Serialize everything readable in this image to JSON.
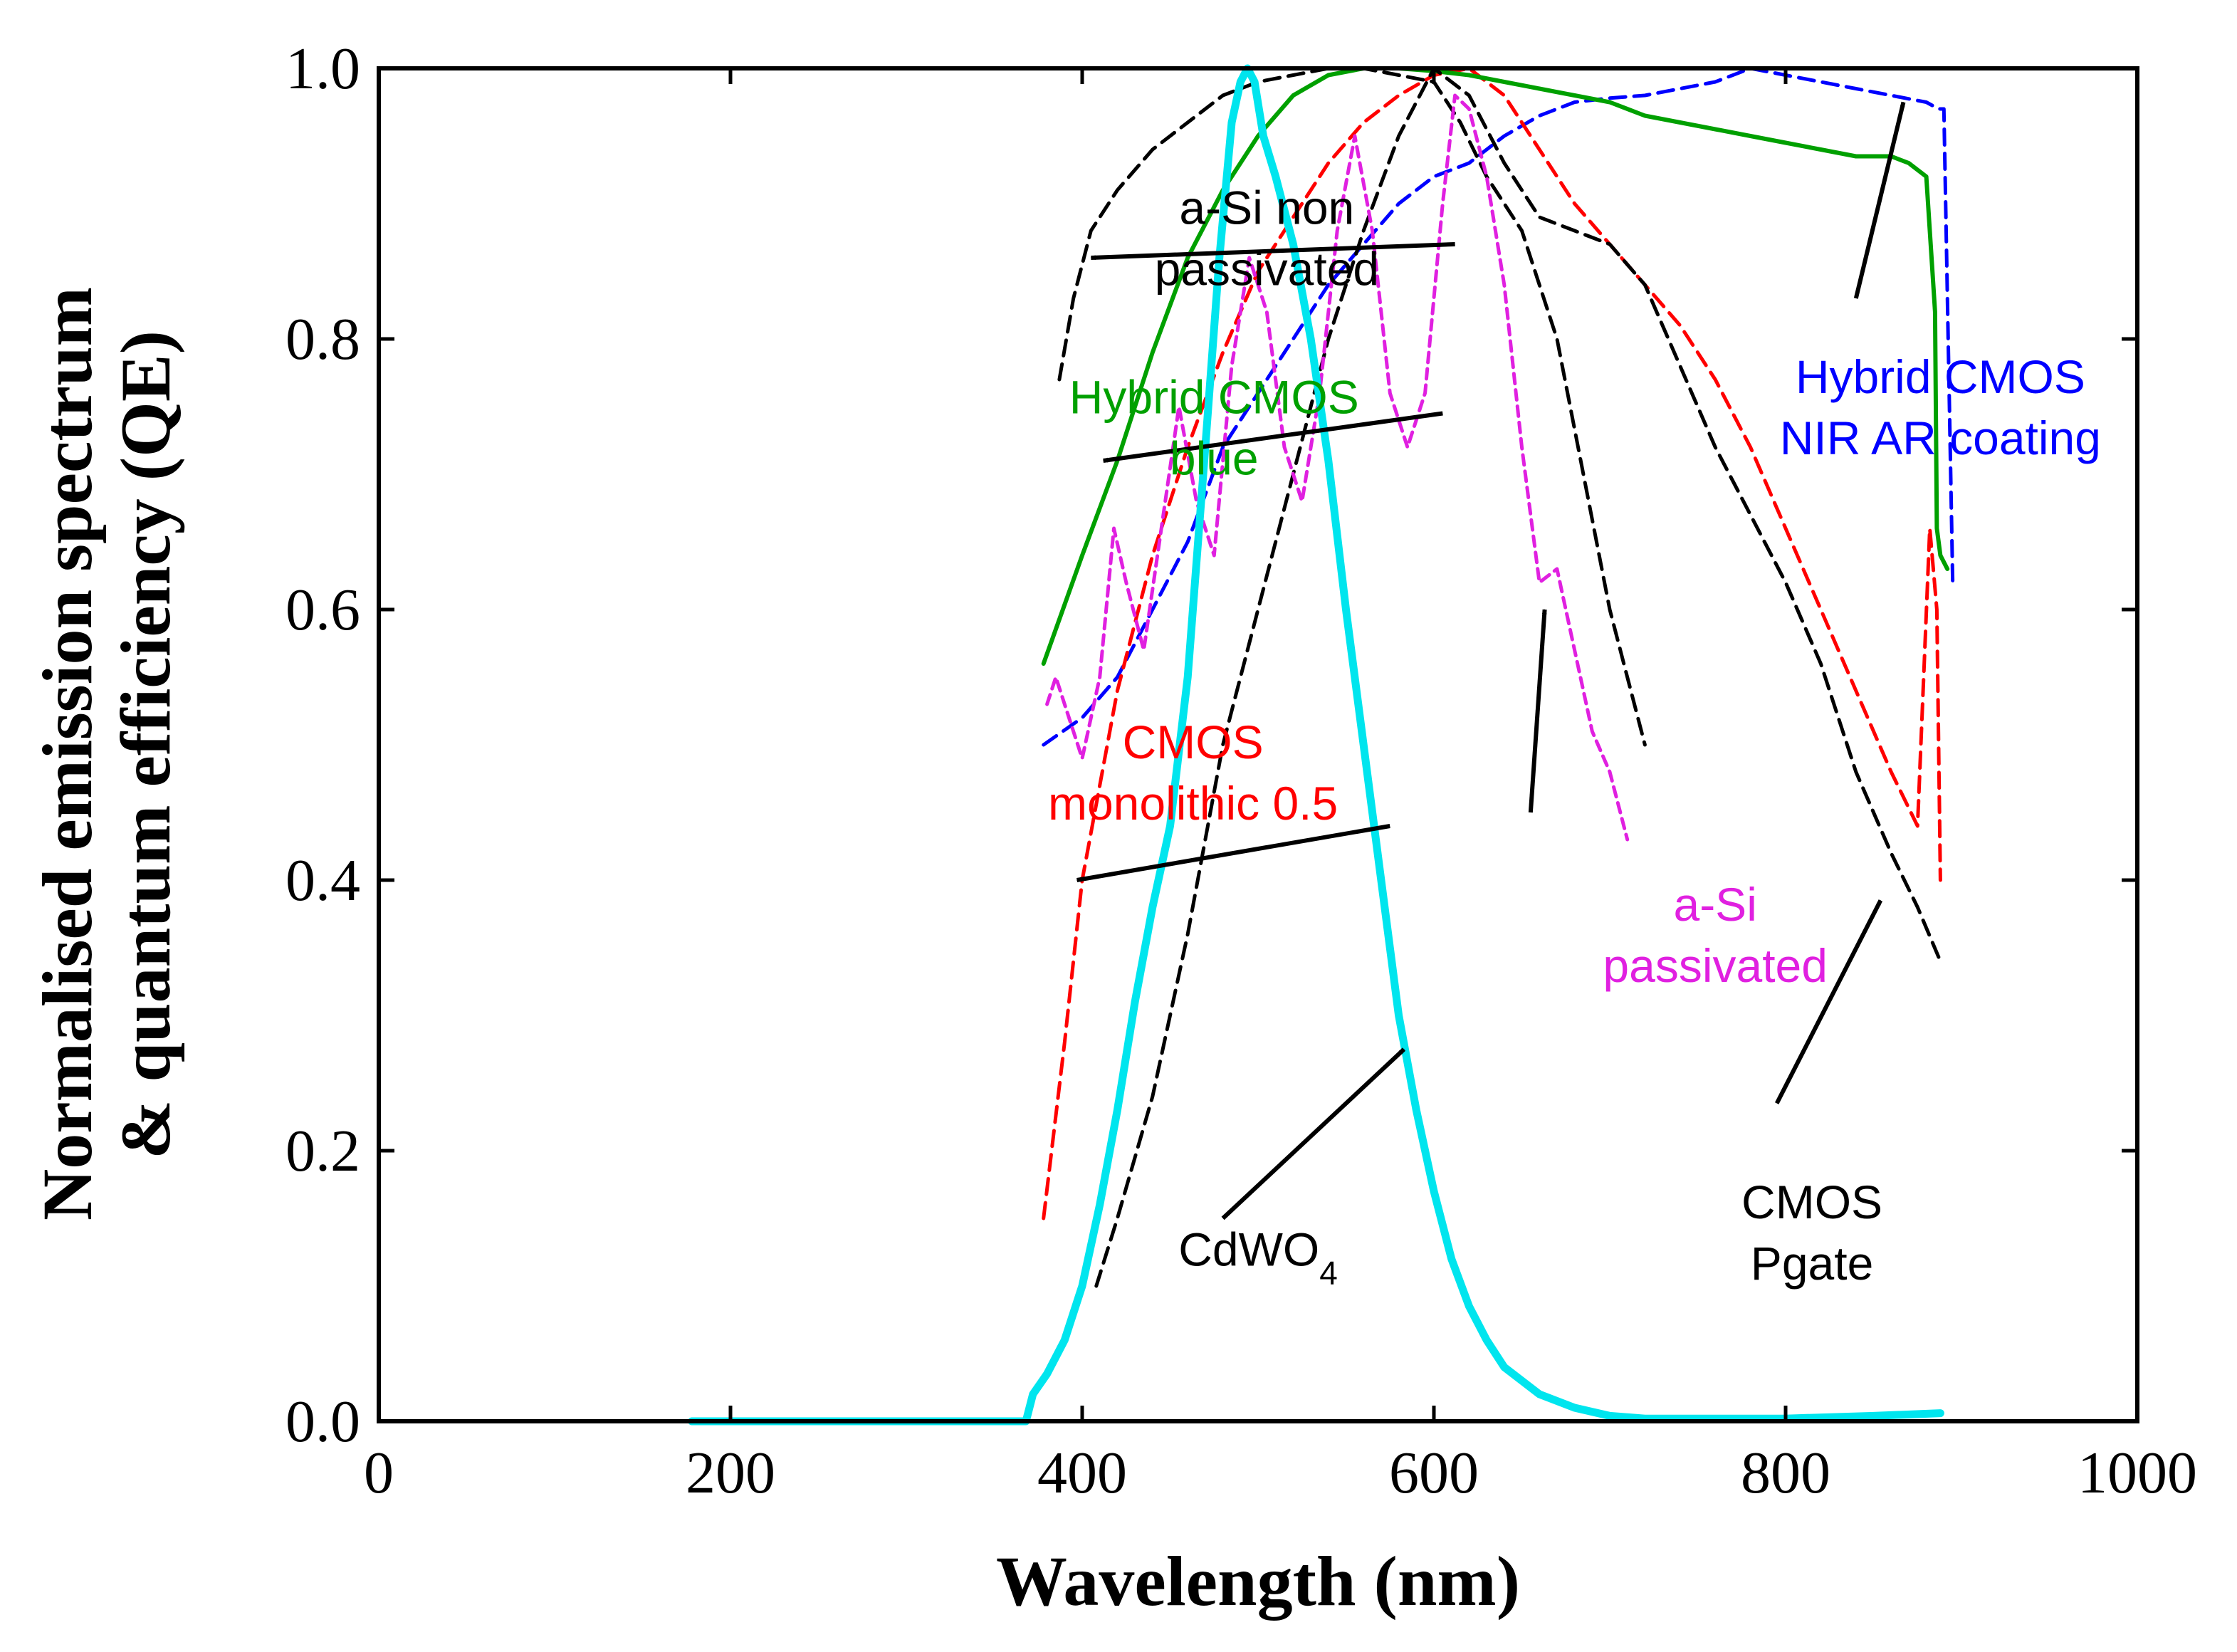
{
  "chart_data": {
    "type": "line",
    "title": "",
    "xlabel": "Wavelength (nm)",
    "ylabel": "Normalised emission spectrum & quantum efficiency (QE)",
    "ylabel_lines": [
      "Normalised emission spectrum",
      "& quantum efficiency (QE)"
    ],
    "xlim": [
      0,
      1000
    ],
    "ylim": [
      0,
      1.0
    ],
    "xticks": [
      0,
      200,
      400,
      600,
      800,
      1000
    ],
    "xtick_labels": [
      "0",
      "200",
      "400",
      "600",
      "800",
      "1000"
    ],
    "yticks": [
      0,
      0.2,
      0.4,
      0.6,
      0.8,
      1.0
    ],
    "ytick_labels": [
      "0.0",
      "0.2",
      "0.4",
      "0.6",
      "0.8",
      "1.0"
    ],
    "grid": false,
    "series": [
      {
        "name": "CdWO4",
        "color": "#00e5ee",
        "style": "solid",
        "x": [
          178,
          368,
          372,
          380,
          390,
          400,
          410,
          420,
          430,
          440,
          450,
          460,
          470,
          478,
          485,
          490,
          494,
          498,
          503,
          510,
          520,
          530,
          540,
          550,
          560,
          570,
          580,
          590,
          600,
          610,
          620,
          630,
          640,
          660,
          680,
          700,
          720,
          760,
          800,
          850,
          888
        ],
        "y": [
          0.0,
          0.0,
          0.02,
          0.035,
          0.06,
          0.1,
          0.16,
          0.23,
          0.31,
          0.38,
          0.44,
          0.55,
          0.72,
          0.86,
          0.96,
          0.99,
          1.0,
          0.99,
          0.95,
          0.92,
          0.87,
          0.8,
          0.71,
          0.6,
          0.5,
          0.4,
          0.3,
          0.23,
          0.17,
          0.12,
          0.085,
          0.06,
          0.04,
          0.02,
          0.01,
          0.004,
          0.002,
          0.002,
          0.002,
          0.004,
          0.006
        ]
      },
      {
        "name": "a-Si non passivated",
        "color": "#000000",
        "style": "dashed",
        "x": [
          387,
          395,
          405,
          420,
          440,
          460,
          480,
          500,
          520,
          540,
          560,
          580,
          600,
          615,
          630,
          650,
          670,
          700,
          720
        ],
        "y": [
          0.77,
          0.83,
          0.88,
          0.91,
          0.94,
          0.96,
          0.98,
          0.99,
          0.995,
          1.0,
          1.0,
          0.995,
          0.99,
          0.96,
          0.92,
          0.88,
          0.8,
          0.6,
          0.5
        ]
      },
      {
        "name": "Hybrid CMOS blue",
        "color": "#00a000",
        "style": "solid",
        "x": [
          378,
          400,
          420,
          440,
          460,
          480,
          500,
          520,
          540,
          560,
          580,
          600,
          620,
          640,
          660,
          680,
          700,
          720,
          740,
          760,
          780,
          800,
          820,
          840,
          860,
          870,
          880,
          885,
          886,
          888,
          892
        ],
        "y": [
          0.56,
          0.64,
          0.71,
          0.79,
          0.86,
          0.91,
          0.95,
          0.98,
          0.995,
          1.0,
          1.0,
          0.998,
          0.995,
          0.99,
          0.985,
          0.98,
          0.975,
          0.965,
          0.96,
          0.955,
          0.95,
          0.945,
          0.94,
          0.935,
          0.935,
          0.93,
          0.92,
          0.82,
          0.66,
          0.64,
          0.63
        ]
      },
      {
        "name": "CMOS monolithic 0.5",
        "color": "#ff0000",
        "style": "dashed",
        "x": [
          378,
          390,
          400,
          410,
          420,
          440,
          460,
          480,
          500,
          520,
          540,
          560,
          580,
          600,
          620,
          640,
          660,
          680,
          700,
          720,
          740,
          760,
          780,
          800,
          820,
          840,
          860,
          875,
          882,
          886,
          888
        ],
        "y": [
          0.15,
          0.28,
          0.4,
          0.47,
          0.54,
          0.64,
          0.72,
          0.79,
          0.85,
          0.89,
          0.93,
          0.96,
          0.98,
          0.995,
          1.0,
          0.98,
          0.94,
          0.9,
          0.87,
          0.84,
          0.81,
          0.77,
          0.72,
          0.66,
          0.6,
          0.54,
          0.48,
          0.44,
          0.66,
          0.6,
          0.4
        ]
      },
      {
        "name": "Hybrid CMOS NIR AR coating",
        "color": "#0000ff",
        "style": "dashed",
        "x": [
          378,
          400,
          420,
          440,
          460,
          480,
          500,
          520,
          540,
          560,
          580,
          600,
          620,
          640,
          660,
          680,
          700,
          720,
          740,
          760,
          780,
          800,
          820,
          840,
          860,
          880,
          887,
          890,
          895
        ],
        "y": [
          0.5,
          0.52,
          0.55,
          0.6,
          0.65,
          0.72,
          0.76,
          0.8,
          0.84,
          0.87,
          0.9,
          0.92,
          0.93,
          0.95,
          0.965,
          0.975,
          0.978,
          0.98,
          0.985,
          0.99,
          1.0,
          0.995,
          0.99,
          0.985,
          0.98,
          0.975,
          0.97,
          0.97,
          0.62
        ]
      },
      {
        "name": "a-Si passivated",
        "color": "#e020e0",
        "style": "dashed",
        "x": [
          380,
          385,
          390,
          400,
          410,
          418,
          425,
          435,
          445,
          455,
          465,
          475,
          485,
          495,
          505,
          515,
          525,
          535,
          545,
          555,
          565,
          575,
          585,
          595,
          605,
          612,
          620,
          630,
          640,
          650,
          660,
          670,
          680,
          690,
          700,
          710
        ],
        "y": [
          0.53,
          0.55,
          0.53,
          0.49,
          0.55,
          0.66,
          0.62,
          0.57,
          0.66,
          0.75,
          0.68,
          0.64,
          0.78,
          0.86,
          0.82,
          0.72,
          0.68,
          0.76,
          0.88,
          0.95,
          0.88,
          0.76,
          0.72,
          0.76,
          0.9,
          0.98,
          0.97,
          0.92,
          0.84,
          0.72,
          0.62,
          0.63,
          0.57,
          0.51,
          0.48,
          0.43
        ]
      },
      {
        "name": "CMOS Pgate",
        "color": "#000000",
        "style": "dashed",
        "x": [
          408,
          420,
          440,
          460,
          480,
          500,
          520,
          540,
          560,
          580,
          600,
          620,
          640,
          660,
          680,
          700,
          720,
          740,
          760,
          780,
          800,
          820,
          840,
          860,
          875,
          888
        ],
        "y": [
          0.1,
          0.15,
          0.24,
          0.36,
          0.5,
          0.6,
          0.7,
          0.8,
          0.88,
          0.95,
          1.0,
          0.98,
          0.93,
          0.89,
          0.88,
          0.87,
          0.84,
          0.78,
          0.72,
          0.67,
          0.62,
          0.56,
          0.48,
          0.42,
          0.38,
          0.34
        ]
      }
    ],
    "annotations": [
      {
        "name": "a-Si non passivated",
        "lines": [
          "a-Si non",
          "passivated"
        ],
        "color": "#000000",
        "tx": 505,
        "ty": 0.885,
        "arrow_from": [
          612,
          0.87
        ],
        "arrow_to": [
          405,
          0.86
        ]
      },
      {
        "name": "Hybrid CMOS blue",
        "lines": [
          "Hybrid CMOS",
          "blue"
        ],
        "color": "#00a000",
        "tx": 475,
        "ty": 0.745,
        "arrow_from": [
          605,
          0.745
        ],
        "arrow_to": [
          412,
          0.71
        ]
      },
      {
        "name": "CMOS monolithic 0.5",
        "lines": [
          "CMOS",
          "monolithic 0.5"
        ],
        "color": "#ff0000",
        "tx": 463,
        "ty": 0.49,
        "arrow_from": [
          575,
          0.44
        ],
        "arrow_to": [
          397,
          0.4
        ]
      },
      {
        "name": "Hybrid CMOS NIR AR coating",
        "lines": [
          "Hybrid CMOS",
          "NIR AR coating"
        ],
        "color": "#0000ff",
        "tx": 888,
        "ty": 0.76,
        "arrow_from": [
          840,
          0.83
        ],
        "arrow_to": [
          867,
          0.975
        ]
      },
      {
        "name": "a-Si passivated",
        "lines": [
          "a-Si",
          "passivated"
        ],
        "color": "#e020e0",
        "tx": 760,
        "ty": 0.37,
        "arrow_from": [
          655,
          0.45
        ],
        "arrow_to": [
          663,
          0.6
        ]
      },
      {
        "name": "CdWO4",
        "lines": [
          "CdWO4"
        ],
        "color": "#000000",
        "tx": 500,
        "ty": 0.115,
        "arrow_from": [
          480,
          0.15
        ],
        "arrow_to": [
          583,
          0.275
        ]
      },
      {
        "name": "CMOS Pgate",
        "lines": [
          "CMOS",
          "Pgate"
        ],
        "color": "#000000",
        "tx": 815,
        "ty": 0.15,
        "arrow_from": [
          795,
          0.235
        ],
        "arrow_to": [
          854,
          0.385
        ]
      }
    ]
  }
}
